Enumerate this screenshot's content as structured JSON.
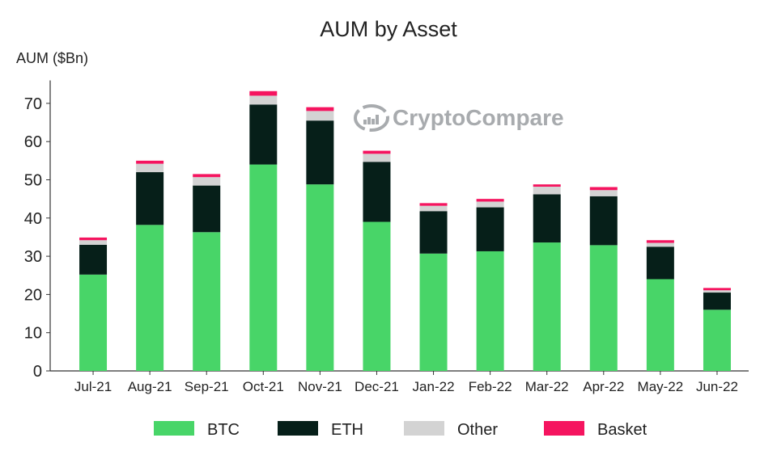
{
  "chart_data": {
    "type": "bar",
    "stacked": true,
    "title": "AUM by Asset",
    "ylabel": "AUM ($Bn)",
    "xlabel": "",
    "ylim": [
      0,
      76
    ],
    "yticks": [
      0,
      10,
      20,
      30,
      40,
      50,
      60,
      70
    ],
    "grid": false,
    "legend_position": "bottom",
    "watermark": "CryptoCompare",
    "categories": [
      "Jul-21",
      "Aug-21",
      "Sep-21",
      "Oct-21",
      "Nov-21",
      "Dec-21",
      "Jan-22",
      "Feb-22",
      "Mar-22",
      "Apr-22",
      "May-22",
      "Jun-22"
    ],
    "series": [
      {
        "name": "BTC",
        "color": "#48d568",
        "values": [
          25.2,
          38.2,
          36.3,
          54.0,
          48.8,
          39.0,
          30.7,
          31.3,
          33.6,
          32.9,
          24.0,
          16.0
        ]
      },
      {
        "name": "ETH",
        "color": "#061f19",
        "values": [
          7.8,
          13.8,
          12.2,
          15.7,
          16.7,
          15.7,
          11.1,
          11.5,
          12.6,
          12.8,
          8.5,
          4.5
        ]
      },
      {
        "name": "Other",
        "color": "#d3d3d3",
        "values": [
          1.2,
          2.2,
          2.2,
          2.3,
          2.5,
          2.1,
          1.4,
          1.5,
          2.0,
          1.6,
          1.0,
          0.6
        ]
      },
      {
        "name": "Basket",
        "color": "#f5145f",
        "values": [
          0.7,
          0.8,
          0.8,
          1.2,
          1.0,
          0.8,
          0.7,
          0.7,
          0.6,
          0.8,
          0.7,
          0.6
        ]
      }
    ]
  }
}
